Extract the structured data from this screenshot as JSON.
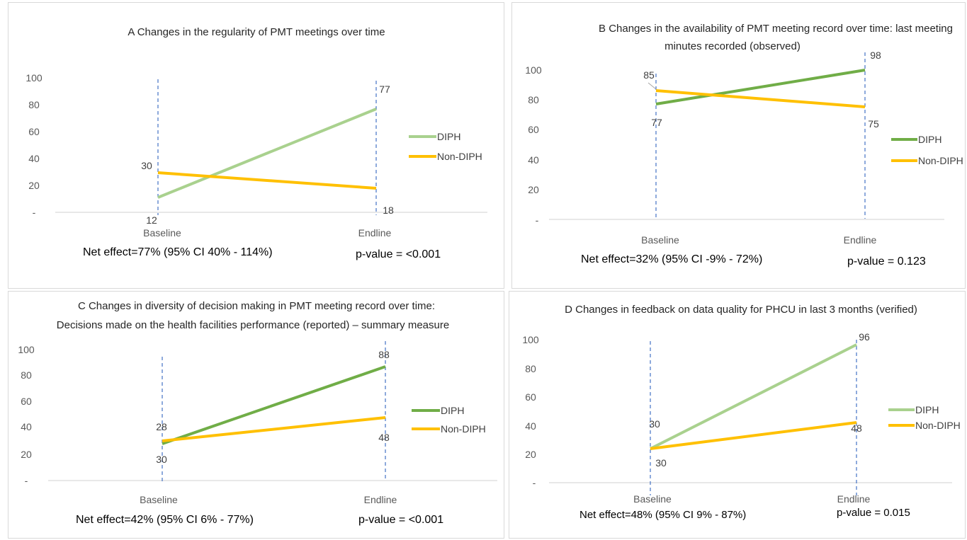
{
  "panels": [
    {
      "id": "a",
      "title_lines": [
        "A  Changes in the regularity of PMT meetings over time"
      ],
      "net_effect": "Net effect=77% (95% CI 40% - 114%)",
      "p_value": "p-value = <0.001",
      "legend": [
        "DIPH",
        "Non-DIPH"
      ],
      "y_tick_labels": [
        "-",
        "20",
        "40",
        "60",
        "80",
        "100"
      ],
      "categories": [
        "Baseline",
        "Endline"
      ],
      "data_labels": {
        "diph": [
          "12",
          "77"
        ],
        "non_diph": [
          "30",
          "18"
        ]
      }
    },
    {
      "id": "b",
      "title_lines": [
        "B  Changes in the availability of PMT meeting record over time:  last meeting",
        "minutes recorded (observed)"
      ],
      "net_effect": "Net effect=32% (95% CI -9% - 72%)",
      "p_value": "p-value = 0.123",
      "legend": [
        "DIPH",
        "Non-DIPH"
      ],
      "y_tick_labels": [
        "-",
        "20",
        "40",
        "60",
        "80",
        "100"
      ],
      "categories": [
        "Baseline",
        "Endline"
      ],
      "data_labels": {
        "diph": [
          "77",
          "98"
        ],
        "non_diph": [
          "85",
          "75"
        ]
      }
    },
    {
      "id": "c",
      "title_lines": [
        "C   Changes in diversity of decision making in PMT meeting record over time:",
        "Decisions made on the health facilities performance (reported) – summary measure"
      ],
      "net_effect": "Net effect=42% (95% CI 6% - 77%)",
      "p_value": "p-value = <0.001",
      "legend": [
        "DIPH",
        "Non-DIPH"
      ],
      "y_tick_labels": [
        "-",
        "20",
        "40",
        "60",
        "80",
        "100"
      ],
      "categories": [
        "Baseline",
        "Endline"
      ],
      "data_labels": {
        "diph": [
          "28",
          "88"
        ],
        "non_diph": [
          "30",
          "48"
        ]
      }
    },
    {
      "id": "d",
      "title_lines": [
        "D Changes in feedback on data quality for PHCU in last 3 months (verified)"
      ],
      "net_effect": "Net effect=48% (95% CI 9% - 87%)",
      "p_value": "p-value = 0.015",
      "legend": [
        "DIPH",
        "Non-DIPH"
      ],
      "y_tick_labels": [
        "-",
        "20",
        "40",
        "60",
        "80",
        "100"
      ],
      "categories": [
        "Baseline",
        "Endline"
      ],
      "data_labels": {
        "diph": [
          "30",
          "96"
        ],
        "non_diph": [
          "30",
          "48"
        ]
      }
    }
  ],
  "chart_data": [
    {
      "type": "line",
      "title": "A  Changes in the regularity of PMT meetings over time",
      "categories": [
        "Baseline",
        "Endline"
      ],
      "series": [
        {
          "name": "DIPH",
          "values": [
            12,
            77
          ],
          "color": "#a9d18e"
        },
        {
          "name": "Non-DIPH",
          "values": [
            30,
            18
          ],
          "color": "#ffc000"
        }
      ],
      "ylim": [
        0,
        100
      ],
      "grid": false,
      "legend": "right"
    },
    {
      "type": "line",
      "title": "B  Changes in the availability of PMT meeting record over time:  last meeting minutes recorded (observed)",
      "categories": [
        "Baseline",
        "Endline"
      ],
      "series": [
        {
          "name": "DIPH",
          "values": [
            77,
            98
          ],
          "color": "#70ad47"
        },
        {
          "name": "Non-DIPH",
          "values": [
            85,
            75
          ],
          "color": "#ffc000"
        }
      ],
      "ylim": [
        0,
        100
      ],
      "grid": false,
      "legend": "right"
    },
    {
      "type": "line",
      "title": "C   Changes in diversity of decision making in PMT meeting record over time: Decisions made on the health facilities performance (reported) – summary measure",
      "categories": [
        "Baseline",
        "Endline"
      ],
      "series": [
        {
          "name": "DIPH",
          "values": [
            28,
            88
          ],
          "color": "#70ad47"
        },
        {
          "name": "Non-DIPH",
          "values": [
            30,
            48
          ],
          "color": "#ffc000"
        }
      ],
      "ylim": [
        0,
        100
      ],
      "grid": false,
      "legend": "right"
    },
    {
      "type": "line",
      "title": "D Changes in feedback on data quality for PHCU in last 3 months (verified)",
      "categories": [
        "Baseline",
        "Endline"
      ],
      "series": [
        {
          "name": "DIPH",
          "values": [
            30,
            96
          ],
          "color": "#a9d18e"
        },
        {
          "name": "Non-DIPH",
          "values": [
            30,
            48
          ],
          "color": "#ffc000"
        }
      ],
      "ylim": [
        0,
        100
      ],
      "grid": false,
      "legend": "right"
    }
  ]
}
